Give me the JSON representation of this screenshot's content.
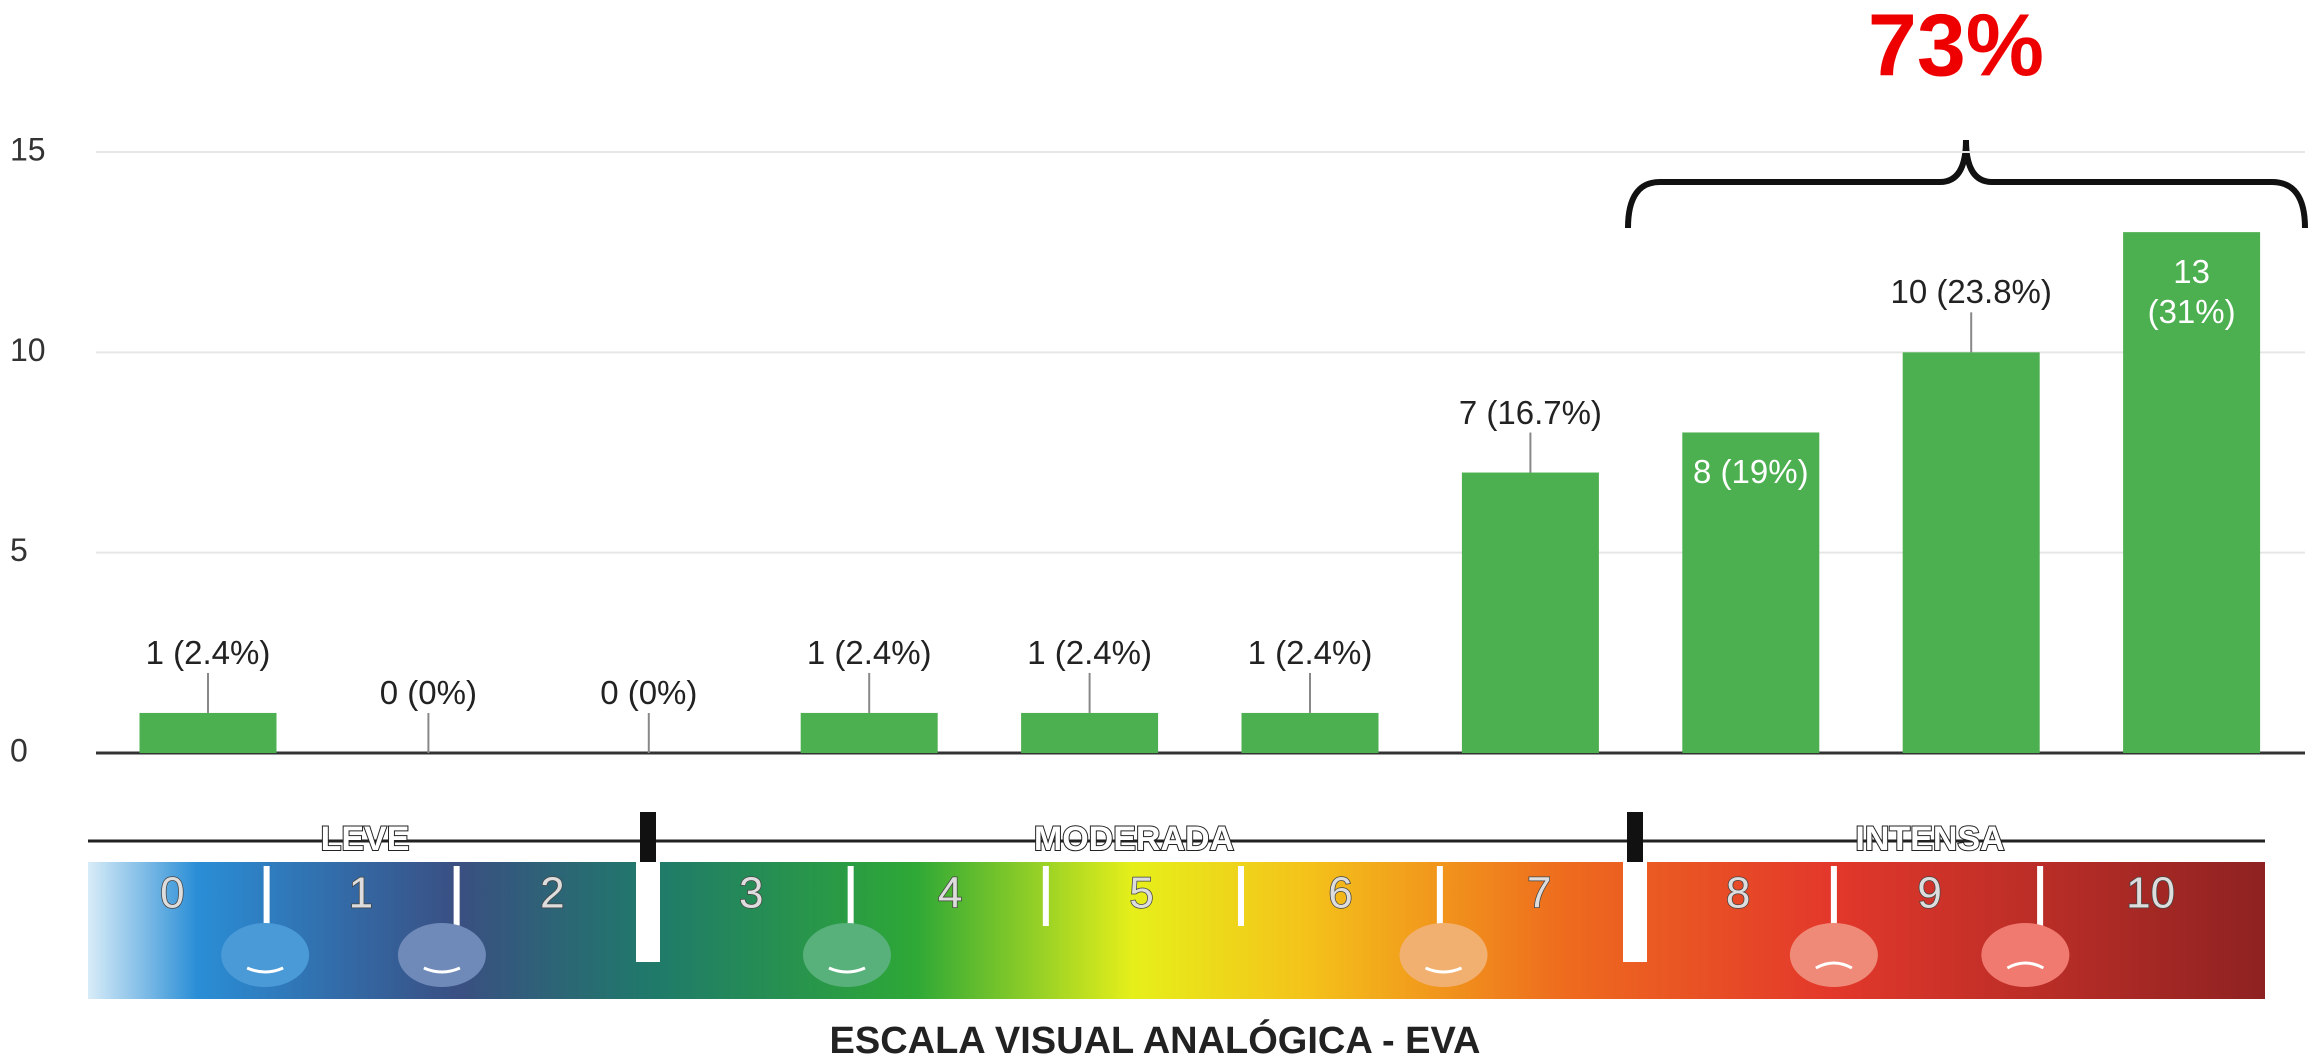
{
  "chart_data": {
    "type": "bar",
    "categories": [
      null,
      null,
      null,
      null,
      null,
      null,
      null,
      null,
      null,
      null
    ],
    "values": [
      1,
      0,
      0,
      1,
      1,
      1,
      7,
      8,
      10,
      13
    ],
    "value_labels": [
      "1 (2.4%)",
      "0 (0%)",
      "0 (0%)",
      "1 (2.4%)",
      "1 (2.4%)",
      "1 (2.4%)",
      "7 (16.7%)",
      "8 (19%)",
      "10 (23.8%)",
      "13 (31%)"
    ],
    "value_label_position": [
      "outside",
      "outside",
      "outside",
      "outside",
      "outside",
      "outside",
      "outside",
      "inside",
      "outside",
      "inside"
    ],
    "color": "#4caf50",
    "ylim": [
      0,
      15
    ],
    "yticks": [
      0,
      5,
      10,
      15
    ],
    "grid": true,
    "annotation": "73%"
  },
  "eva_scale": {
    "levels": [
      "LEVE",
      "MODERADA",
      "INTENSA"
    ],
    "numbers": [
      "0",
      "1",
      "2",
      "3",
      "4",
      "5",
      "6",
      "7",
      "8",
      "9",
      "10"
    ],
    "title": "ESCALA VISUAL ANALÓGICA - EVA"
  }
}
